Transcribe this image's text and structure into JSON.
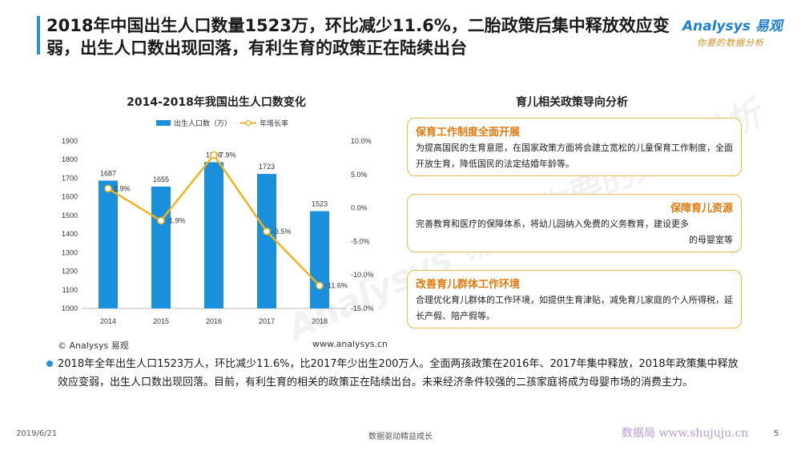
{
  "title": "2018年中国出生人口数量1523万，环比减少11.6%，二胎政策后集中释放效应变弱，出生人口数出现回落，有利生育的政策正在陆续出台",
  "logo": {
    "main": "Analysys 易观",
    "sub": "你要的数据分析"
  },
  "chart_title": "2014-2018年我国出生人口数变化",
  "chart_data": {
    "type": "bar",
    "categories": [
      "2014",
      "2015",
      "2016",
      "2017",
      "2018"
    ],
    "series": [
      {
        "name": "出生人口数（万）",
        "type": "bar",
        "axis": "left",
        "values": [
          1687,
          1655,
          1786,
          1723,
          1523
        ],
        "labels": [
          "1687",
          "1655",
          "1786",
          "1723",
          "1523"
        ],
        "color": "#1a90dc"
      },
      {
        "name": "年增长率",
        "type": "line",
        "axis": "right",
        "values": [
          2.9,
          -1.9,
          7.9,
          -3.5,
          -11.6
        ],
        "labels": [
          "2.9%",
          "-1.9%",
          "7.9%",
          "-3.5%",
          "-11.6%"
        ],
        "color": "#f2b21b"
      }
    ],
    "ylim": [
      1000,
      1900
    ],
    "yticks": [
      "1900",
      "1800",
      "1700",
      "1600",
      "1500",
      "1400",
      "1300",
      "1200",
      "1100",
      "1000"
    ],
    "y2lim": [
      -15,
      10
    ],
    "y2ticks": [
      "10.0%",
      "5.0%",
      "0.0%",
      "-5.0%",
      "-10.0%",
      "-15.0%"
    ],
    "legend_position": "top"
  },
  "copyright": "© Analysys 易观",
  "website": "www.analysys.cn",
  "policy_title": "育儿相关政策导向分析",
  "cards": [
    {
      "head": "保育工作制度全面开展",
      "body": "为提高国民的生育意愿，在国家政策方面将会建立宽松的儿童保育工作制度，全面开放生育，降低国民的法定结婚年龄等。"
    },
    {
      "head": "保障育儿资源",
      "body": "完善教育和医疗的保障体系，将幼儿园纳入免费的义务教育，建设更多",
      "body2": "的母婴室等"
    },
    {
      "head": "改善育儿群体工作环境",
      "body": "合理优化育儿群体的工作环境，如提供生育津贴，减免育儿家庭的个人所得税，延长产假、陪产假等。"
    }
  ],
  "bullet": "2018年全年出生人口1523万人，环比减少11.6%，比2017年少出生200万人。全面两孩政策在2016年、2017年集中释放，2018年政策集中释放效应变弱，出生人口数出现回落。目前，有利生育的相关的政策正在陆续出台。未来经济条件较强的二孩家庭将成为母婴市场的消费主力。",
  "watermark": "Analysys 易观 你要的数据分析",
  "footer": {
    "date": "2019/6/21",
    "center": "数据驱动精益成长",
    "wm": "数据局 www.shujuju.cn",
    "page": "5"
  }
}
